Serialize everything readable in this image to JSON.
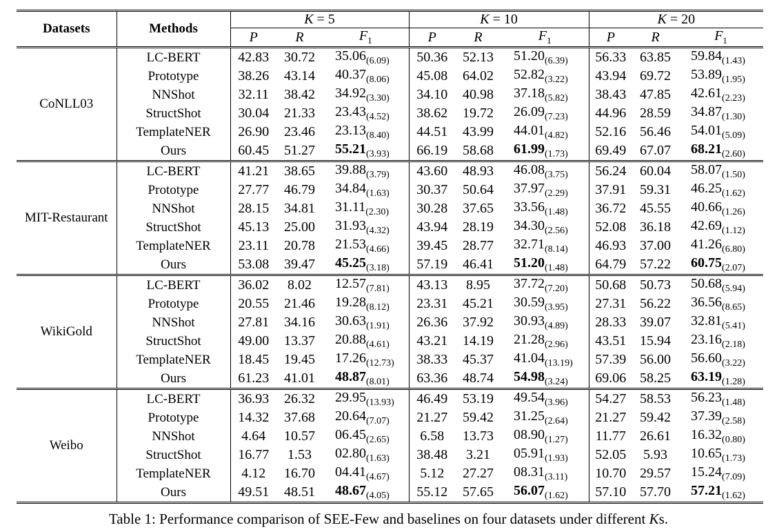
{
  "header": {
    "datasets_label": "Datasets",
    "methods_label": "Methods",
    "k_groups": [
      {
        "k_label": "K",
        "k_eq": "= 5"
      },
      {
        "k_label": "K",
        "k_eq": "= 10"
      },
      {
        "k_label": "K",
        "k_eq": "= 20"
      }
    ],
    "metrics": [
      "P",
      "R",
      "F"
    ],
    "f1_subscript": "1"
  },
  "datasets": [
    {
      "name": "CoNLL03",
      "rows": [
        {
          "method": "LC-BERT",
          "k5": [
            "42.83",
            "30.72",
            "35.06",
            "(6.09)"
          ],
          "k10": [
            "50.36",
            "52.13",
            "51.20",
            "(6.39)"
          ],
          "k20": [
            "56.33",
            "63.85",
            "59.84",
            "(1.43)"
          ],
          "bold": false
        },
        {
          "method": "Prototype",
          "k5": [
            "38.26",
            "43.14",
            "40.37",
            "(8.06)"
          ],
          "k10": [
            "45.08",
            "64.02",
            "52.82",
            "(3.22)"
          ],
          "k20": [
            "43.94",
            "69.72",
            "53.89",
            "(1.95)"
          ],
          "bold": false
        },
        {
          "method": "NNShot",
          "k5": [
            "32.11",
            "38.42",
            "34.92",
            "(3.30)"
          ],
          "k10": [
            "34.10",
            "40.98",
            "37.18",
            "(5.82)"
          ],
          "k20": [
            "38.43",
            "47.85",
            "42.61",
            "(2.23)"
          ],
          "bold": false
        },
        {
          "method": "StructShot",
          "k5": [
            "30.04",
            "21.33",
            "23.43",
            "(4.52)"
          ],
          "k10": [
            "38.62",
            "19.72",
            "26.09",
            "(7.23)"
          ],
          "k20": [
            "44.96",
            "28.59",
            "34.87",
            "(1.30)"
          ],
          "bold": false
        },
        {
          "method": "TemplateNER",
          "k5": [
            "26.90",
            "23.46",
            "23.13",
            "(8.40)"
          ],
          "k10": [
            "44.51",
            "43.99",
            "44.01",
            "(4.82)"
          ],
          "k20": [
            "52.16",
            "56.46",
            "54.01",
            "(5.09)"
          ],
          "bold": false
        },
        {
          "method": "Ours",
          "k5": [
            "60.45",
            "51.27",
            "55.21",
            "(3.93)"
          ],
          "k10": [
            "66.19",
            "58.68",
            "61.99",
            "(1.73)"
          ],
          "k20": [
            "69.49",
            "67.07",
            "68.21",
            "(2.60)"
          ],
          "bold": true
        }
      ]
    },
    {
      "name": "MIT-Restaurant",
      "rows": [
        {
          "method": "LC-BERT",
          "k5": [
            "41.21",
            "38.65",
            "39.88",
            "(3.79)"
          ],
          "k10": [
            "43.60",
            "48.93",
            "46.08",
            "(3.75)"
          ],
          "k20": [
            "56.24",
            "60.04",
            "58.07",
            "(1.50)"
          ],
          "bold": false
        },
        {
          "method": "Prototype",
          "k5": [
            "27.77",
            "46.79",
            "34.84",
            "(1.63)"
          ],
          "k10": [
            "30.37",
            "50.64",
            "37.97",
            "(2.29)"
          ],
          "k20": [
            "37.91",
            "59.31",
            "46.25",
            "(1.62)"
          ],
          "bold": false
        },
        {
          "method": "NNShot",
          "k5": [
            "28.15",
            "34.81",
            "31.11",
            "(2.30)"
          ],
          "k10": [
            "30.28",
            "37.65",
            "33.56",
            "(1.48)"
          ],
          "k20": [
            "36.72",
            "45.55",
            "40.66",
            "(1.26)"
          ],
          "bold": false
        },
        {
          "method": "StructShot",
          "k5": [
            "45.13",
            "25.00",
            "31.93",
            "(4.32)"
          ],
          "k10": [
            "43.94",
            "28.19",
            "34.30",
            "(2.56)"
          ],
          "k20": [
            "52.08",
            "36.18",
            "42.69",
            "(1.12)"
          ],
          "bold": false
        },
        {
          "method": "TemplateNER",
          "k5": [
            "23.11",
            "20.78",
            "21.53",
            "(4.66)"
          ],
          "k10": [
            "39.45",
            "28.77",
            "32.71",
            "(8.14)"
          ],
          "k20": [
            "46.93",
            "37.00",
            "41.26",
            "(6.80)"
          ],
          "bold": false
        },
        {
          "method": "Ours",
          "k5": [
            "53.08",
            "39.47",
            "45.25",
            "(3.18)"
          ],
          "k10": [
            "57.19",
            "46.41",
            "51.20",
            "(1.48)"
          ],
          "k20": [
            "64.79",
            "57.22",
            "60.75",
            "(2.07)"
          ],
          "bold": true
        }
      ]
    },
    {
      "name": "WikiGold",
      "rows": [
        {
          "method": "LC-BERT",
          "k5": [
            "36.02",
            "8.02",
            "12.57",
            "(7.81)"
          ],
          "k10": [
            "43.13",
            "8.95",
            "37.72",
            "(7.20)"
          ],
          "k20": [
            "50.68",
            "50.73",
            "50.68",
            "(5.94)"
          ],
          "bold": false
        },
        {
          "method": "Prototype",
          "k5": [
            "20.55",
            "21.46",
            "19.28",
            "(8.12)"
          ],
          "k10": [
            "23.31",
            "45.21",
            "30.59",
            "(3.95)"
          ],
          "k20": [
            "27.31",
            "56.22",
            "36.56",
            "(8.65)"
          ],
          "bold": false
        },
        {
          "method": "NNShot",
          "k5": [
            "27.81",
            "34.16",
            "30.63",
            "(1.91)"
          ],
          "k10": [
            "26.36",
            "37.92",
            "30.93",
            "(4.89)"
          ],
          "k20": [
            "28.33",
            "39.07",
            "32.81",
            "(5.41)"
          ],
          "bold": false
        },
        {
          "method": "StructShot",
          "k5": [
            "49.00",
            "13.37",
            "20.88",
            "(4.61)"
          ],
          "k10": [
            "43.21",
            "14.19",
            "21.28",
            "(2.96)"
          ],
          "k20": [
            "43.51",
            "15.94",
            "23.16",
            "(2.18)"
          ],
          "bold": false
        },
        {
          "method": "TemplateNER",
          "k5": [
            "18.45",
            "19.45",
            "17.26",
            "(12.73)"
          ],
          "k10": [
            "38.33",
            "45.37",
            "41.04",
            "(13.19)"
          ],
          "k20": [
            "57.39",
            "56.00",
            "56.60",
            "(3.22)"
          ],
          "bold": false
        },
        {
          "method": "Ours",
          "k5": [
            "61.23",
            "41.01",
            "48.87",
            "(8.01)"
          ],
          "k10": [
            "63.36",
            "48.74",
            "54.98",
            "(3.24)"
          ],
          "k20": [
            "69.06",
            "58.25",
            "63.19",
            "(1.28)"
          ],
          "bold": true
        }
      ]
    },
    {
      "name": "Weibo",
      "rows": [
        {
          "method": "LC-BERT",
          "k5": [
            "36.93",
            "26.32",
            "29.95",
            "(13.93)"
          ],
          "k10": [
            "46.49",
            "53.19",
            "49.54",
            "(3.96)"
          ],
          "k20": [
            "54.27",
            "58.53",
            "56.23",
            "(1.48)"
          ],
          "bold": false
        },
        {
          "method": "Prototype",
          "k5": [
            "14.32",
            "37.68",
            "20.64",
            "(7.07)"
          ],
          "k10": [
            "21.27",
            "59.42",
            "31.25",
            "(2.64)"
          ],
          "k20": [
            "21.27",
            "59.42",
            "37.39",
            "(2.58)"
          ],
          "bold": false
        },
        {
          "method": "NNShot",
          "k5": [
            "4.64",
            "10.57",
            "06.45",
            "(2.65)"
          ],
          "k10": [
            "6.58",
            "13.73",
            "08.90",
            "(1.27)"
          ],
          "k20": [
            "11.77",
            "26.61",
            "16.32",
            "(0.80)"
          ],
          "bold": false
        },
        {
          "method": "StructShot",
          "k5": [
            "16.77",
            "1.53",
            "02.80",
            "(1.63)"
          ],
          "k10": [
            "38.48",
            "3.21",
            "05.91",
            "(1.93)"
          ],
          "k20": [
            "52.05",
            "5.93",
            "10.65",
            "(1.73)"
          ],
          "bold": false
        },
        {
          "method": "TemplateNER",
          "k5": [
            "4.12",
            "16.70",
            "04.41",
            "(4.67)"
          ],
          "k10": [
            "5.12",
            "27.27",
            "08.31",
            "(3.11)"
          ],
          "k20": [
            "10.70",
            "29.57",
            "15.24",
            "(7.09)"
          ],
          "bold": false
        },
        {
          "method": "Ours",
          "k5": [
            "49.51",
            "48.51",
            "48.67",
            "(4.05)"
          ],
          "k10": [
            "55.12",
            "57.65",
            "56.07",
            "(1.62)"
          ],
          "k20": [
            "57.10",
            "57.70",
            "57.21",
            "(1.62)"
          ],
          "bold": true
        }
      ]
    }
  ],
  "caption": {
    "prefix": "Table 1: Performance comparison of SEE-Few and baselines on four datasets under different ",
    "k": "K",
    "suffix": "s."
  }
}
